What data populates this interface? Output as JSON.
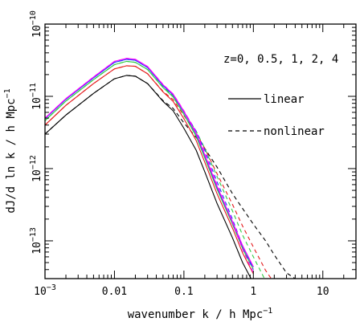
{
  "chart_data": {
    "type": "line",
    "xlabel": "wavenumber k / h Mpc",
    "xlabel_exp": "−1",
    "ylabel": "dJ/d ln k / h Mpc",
    "ylabel_exp": "−1",
    "x_scale": "log",
    "y_scale": "log",
    "xlim": [
      0.001,
      30
    ],
    "ylim": [
      3e-14,
      1e-10
    ],
    "x_ticks": [
      {
        "value": 0.001,
        "base": "10",
        "exp": "−3"
      },
      {
        "value": 0.01,
        "text": "0.01"
      },
      {
        "value": 0.1,
        "text": "0.1"
      },
      {
        "value": 1,
        "text": "1"
      },
      {
        "value": 10,
        "text": "10"
      }
    ],
    "y_ticks": [
      {
        "value": 1e-10,
        "base": "10",
        "exp": "−10"
      },
      {
        "value": 1e-11,
        "base": "10",
        "exp": "−11"
      },
      {
        "value": 1e-12,
        "base": "10",
        "exp": "−12"
      },
      {
        "value": 1e-13,
        "base": "10",
        "exp": "−13"
      }
    ],
    "redshift_annotation": "z=0, 0.5, 1, 2, 4",
    "legend": {
      "placement": "right",
      "entries": [
        {
          "label": "linear",
          "style": "solid"
        },
        {
          "label": "nonlinear",
          "style": "dashed"
        }
      ]
    },
    "x": [
      0.001,
      0.002,
      0.005,
      0.01,
      0.015,
      0.02,
      0.03,
      0.05,
      0.07,
      0.1,
      0.15,
      0.2,
      0.3,
      0.5,
      0.7,
      1,
      1.5,
      2,
      3,
      5
    ],
    "series": [
      {
        "redshift": "0",
        "color": "#000000",
        "linear": [
          3e-12,
          5.5e-12,
          1.1e-11,
          1.75e-11,
          1.95e-11,
          1.9e-11,
          1.5e-11,
          8.5e-12,
          6.3e-12,
          3.6e-12,
          1.8e-12,
          9e-13,
          3.3e-13,
          1.1e-13,
          5e-14,
          2.6e-14,
          null,
          null,
          null,
          null
        ],
        "nonlinear": [
          3e-12,
          5.5e-12,
          1.1e-11,
          1.75e-11,
          1.95e-11,
          1.9e-11,
          1.5e-11,
          8.7e-12,
          6.8e-12,
          4.3e-12,
          2.7e-12,
          1.9e-12,
          1.05e-12,
          4.5e-13,
          2.8e-13,
          1.7e-13,
          1e-13,
          6.4e-14,
          3.6e-14,
          2.6e-14
        ]
      },
      {
        "redshift": "0.5",
        "color": "#e41a1c",
        "linear": [
          4e-12,
          7.5e-12,
          1.5e-11,
          2.4e-11,
          2.65e-11,
          2.6e-11,
          2.05e-11,
          1.15e-11,
          8.5e-12,
          4.9e-12,
          2.45e-12,
          1.22e-12,
          4.5e-13,
          1.5e-13,
          6.8e-14,
          3.5e-14,
          null,
          null,
          null,
          null
        ],
        "nonlinear": [
          4e-12,
          7.5e-12,
          1.5e-11,
          2.4e-11,
          2.65e-11,
          2.6e-11,
          2.05e-11,
          1.17e-11,
          9e-12,
          5.4e-12,
          3.1e-12,
          1.9e-12,
          8.5e-13,
          3.2e-13,
          1.6e-13,
          8.2e-14,
          3.9e-14,
          2.6e-14,
          null,
          null
        ]
      },
      {
        "redshift": "1",
        "color": "#2ecc40",
        "linear": [
          4.6e-12,
          8.6e-12,
          1.7e-11,
          2.75e-11,
          3.05e-11,
          2.95e-11,
          2.35e-11,
          1.32e-11,
          9.8e-12,
          5.6e-12,
          2.8e-12,
          1.4e-12,
          5.2e-13,
          1.7e-13,
          7.8e-14,
          4e-14,
          null,
          null,
          null,
          null
        ],
        "nonlinear": [
          4.6e-12,
          8.6e-12,
          1.7e-11,
          2.75e-11,
          3.05e-11,
          2.95e-11,
          2.35e-11,
          1.34e-11,
          1.02e-11,
          6e-12,
          3.3e-12,
          1.9e-12,
          7.8e-13,
          2.6e-13,
          1.2e-13,
          6e-14,
          2.8e-14,
          null,
          null,
          null
        ]
      },
      {
        "redshift": "2",
        "color": "#1f3fff",
        "linear": [
          4.9e-12,
          9.1e-12,
          1.8e-11,
          2.95e-11,
          3.25e-11,
          3.15e-11,
          2.5e-11,
          1.4e-11,
          1.04e-11,
          6e-12,
          3e-12,
          1.5e-12,
          5.5e-13,
          1.8e-13,
          8.3e-14,
          4.3e-14,
          null,
          null,
          null,
          null
        ],
        "nonlinear": [
          4.9e-12,
          9.1e-12,
          1.8e-11,
          2.95e-11,
          3.25e-11,
          3.15e-11,
          2.5e-11,
          1.41e-11,
          1.06e-11,
          6.2e-12,
          3.3e-12,
          1.8e-12,
          6.6e-13,
          2e-13,
          8.5e-14,
          4e-14,
          null,
          null,
          null,
          null
        ]
      },
      {
        "redshift": "4",
        "color": "#ff00ff",
        "linear": [
          5e-12,
          9.3e-12,
          1.85e-11,
          3.05e-11,
          3.35e-11,
          3.25e-11,
          2.58e-11,
          1.45e-11,
          1.07e-11,
          6.2e-12,
          3.1e-12,
          1.55e-12,
          5.7e-13,
          1.85e-13,
          8.6e-14,
          4.4e-14,
          null,
          null,
          null,
          null
        ],
        "nonlinear": [
          5e-12,
          9.3e-12,
          1.85e-11,
          3.05e-11,
          3.35e-11,
          3.25e-11,
          2.58e-11,
          1.46e-11,
          1.08e-11,
          6.3e-12,
          3.2e-12,
          1.65e-12,
          6e-13,
          1.8e-13,
          7.6e-14,
          3.6e-14,
          null,
          null,
          null,
          null
        ]
      }
    ]
  }
}
